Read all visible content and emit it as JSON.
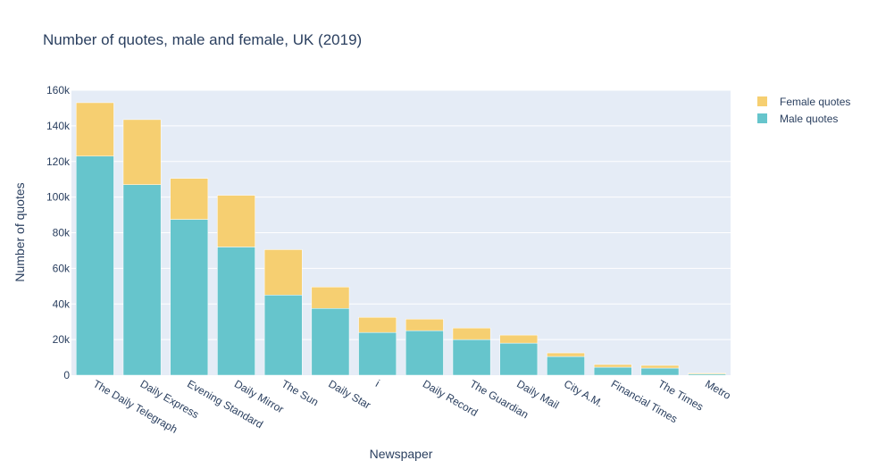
{
  "chart_data": {
    "type": "bar",
    "stacked": true,
    "title": "Number of quotes, male and female, UK (2019)",
    "xlabel": "Newspaper",
    "ylabel": "Number of quotes",
    "categories": [
      "The Daily Telegraph",
      "Daily Express",
      "Evening Standard",
      "Daily Mirror",
      "The Sun",
      "Daily Star",
      "i",
      "Daily Record",
      "The Guardian",
      "Daily Mail",
      "City A.M.",
      "Financial Times",
      "The Times",
      "Metro"
    ],
    "series": [
      {
        "name": "Male quotes",
        "color": "#66c5cc",
        "values": [
          123000,
          107000,
          87500,
          72000,
          45000,
          37500,
          24000,
          25000,
          20000,
          18000,
          10500,
          4500,
          4000,
          700
        ]
      },
      {
        "name": "Female quotes",
        "color": "#f6cf71",
        "values": [
          30000,
          36500,
          23000,
          29000,
          25500,
          12000,
          8500,
          6500,
          6500,
          4500,
          2000,
          1500,
          1500,
          500
        ]
      }
    ],
    "yticks": [
      0,
      20000,
      40000,
      60000,
      80000,
      100000,
      120000,
      140000,
      160000
    ],
    "ytick_labels": [
      "0",
      "20k",
      "40k",
      "60k",
      "80k",
      "100k",
      "120k",
      "140k",
      "160k"
    ],
    "ylim": [
      0,
      160000
    ],
    "grid": true,
    "plot_background": "#e5ecf6",
    "legend_position": "top-right",
    "legend_order": [
      "Female quotes",
      "Male quotes"
    ]
  }
}
